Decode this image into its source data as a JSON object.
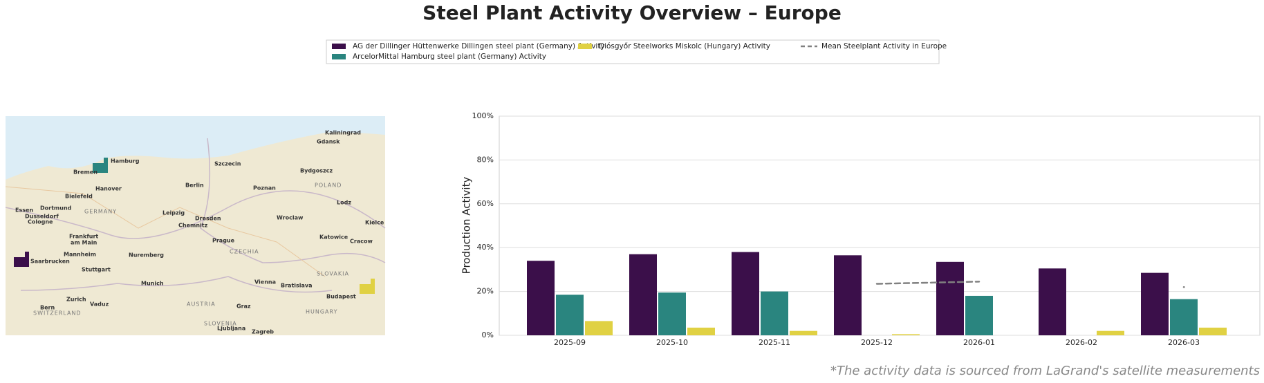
{
  "chart_data": {
    "type": "bar",
    "title": "Steel Plant Activity Overview – Europe",
    "y_label": "Production Activity",
    "footnote": "*The activity data is sourced from LaGrand's satellite measurements",
    "categories": [
      "2025-09",
      "2025-10",
      "2025-11",
      "2025-12",
      "2026-01",
      "2026-02",
      "2026-03"
    ],
    "series": [
      {
        "name": "AG der Dillinger Hüttenwerke Dillingen steel plant (Germany) Activity",
        "color": "#3b0f4a",
        "values": [
          34,
          37,
          38,
          36.5,
          33.5,
          30.5,
          28.5
        ]
      },
      {
        "name": "ArcelorMittal Hamburg steel plant (Germany) Activity",
        "color": "#2a857f",
        "values": [
          18.5,
          19.5,
          20,
          null,
          18,
          null,
          16.5
        ]
      },
      {
        "name": "Diósgyőr Steelworks Miskolc (Hungary) Activity",
        "color": "#e0d143",
        "values": [
          6.5,
          3.5,
          2,
          0.5,
          null,
          2,
          3.5
        ]
      },
      {
        "name": "Mean Steelplant Activity in Europe",
        "color": "#808080",
        "type": "line",
        "dashed": true,
        "values": [
          null,
          null,
          null,
          23.5,
          24.5,
          null,
          22
        ]
      }
    ],
    "ylim": [
      0,
      100
    ],
    "yticks": [
      {
        "value": 0,
        "label": "0%"
      },
      {
        "value": 20,
        "label": "20%"
      },
      {
        "value": 40,
        "label": "40%"
      },
      {
        "value": 60,
        "label": "60%"
      },
      {
        "value": 80,
        "label": "80%"
      },
      {
        "value": 100,
        "label": "100%"
      }
    ],
    "grid": true,
    "legend": "top"
  },
  "map": {
    "labels": [
      "Kaliningrad",
      "Gdansk",
      "Hamburg",
      "Bremen",
      "Szczecin",
      "Bydgoszcz",
      "Hanover",
      "Berlin",
      "Poznan",
      "POLAND",
      "Bielefeld",
      "Dortmund",
      "Essen",
      "Dusseldorf",
      "Cologne",
      "GERMANY",
      "Leipzig",
      "Dresden",
      "Chemnitz",
      "Wroclaw",
      "Lodz",
      "Kielce",
      "Katowice",
      "Cracow",
      "Frankfurt",
      "am Main",
      "Prague",
      "CZECHIA",
      "Mannheim",
      "Nuremberg",
      "Saarbrucken",
      "Stuttgart",
      "Munich",
      "Vienna",
      "Bratislava",
      "SLOVAKIA",
      "Budapest",
      "Zurich",
      "Vaduz",
      "AUSTRIA",
      "Bern",
      "SWITZERLAND",
      "Graz",
      "HUNGARY",
      "SLOVENIA",
      "Ljubljana",
      "Zagreb"
    ]
  }
}
